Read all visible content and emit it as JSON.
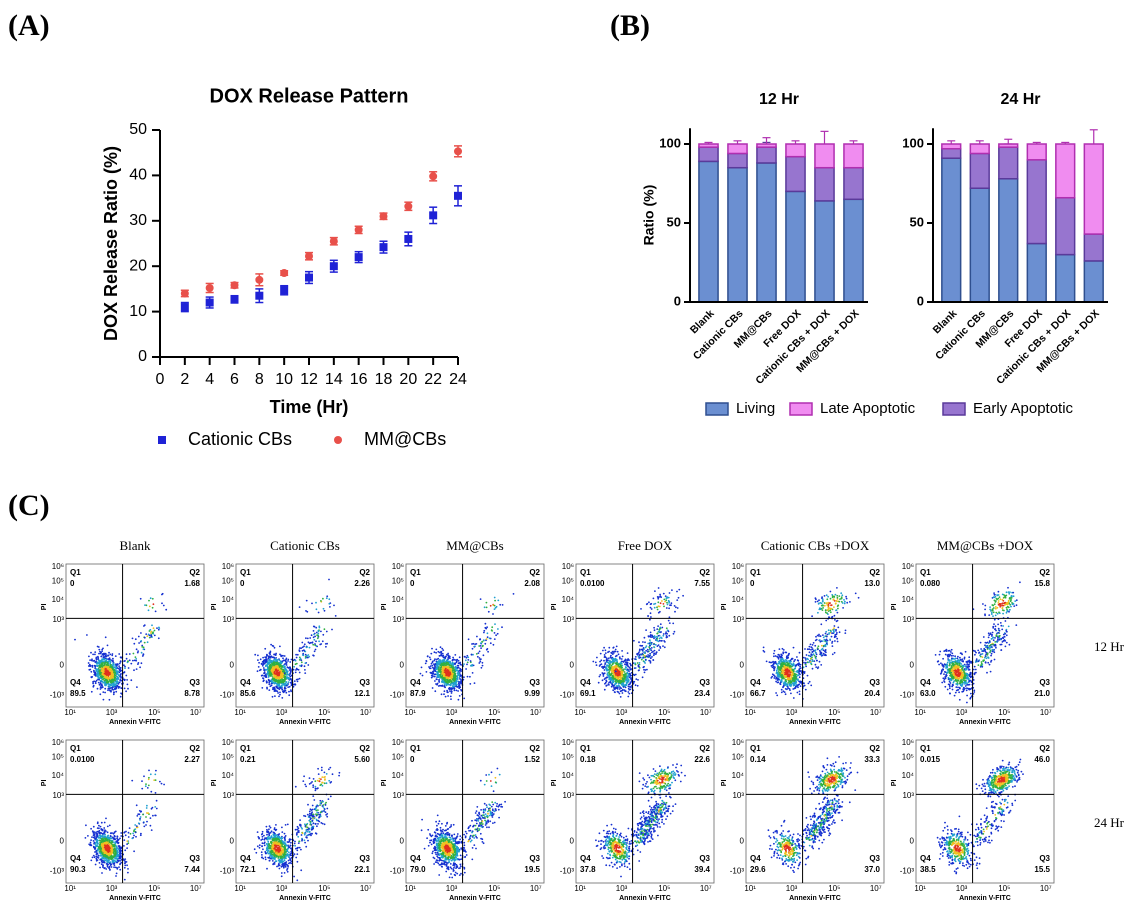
{
  "panel_labels": [
    "(A)",
    "(B)",
    "(C)"
  ],
  "chart_data": [
    {
      "type": "scatter",
      "title": "DOX Release Pattern",
      "xlabel": "Time (Hr)",
      "ylabel": "DOX Release Ratio (%)",
      "x": [
        2,
        4,
        6,
        8,
        10,
        12,
        14,
        16,
        18,
        20,
        22,
        24
      ],
      "series": [
        {
          "name": "Cationic CBs",
          "color": "#1f22d6",
          "marker": "square",
          "values": [
            11,
            12,
            12.7,
            13.5,
            14.7,
            17.5,
            20,
            22,
            24.2,
            26,
            31.2,
            35.5
          ],
          "errors": [
            1,
            1.2,
            0.8,
            1.5,
            1,
            1.3,
            1.3,
            1.2,
            1.3,
            1.5,
            1.8,
            2.2
          ]
        },
        {
          "name": "MM@CBs",
          "color": "#e8504a",
          "marker": "circle",
          "values": [
            14,
            15.2,
            15.8,
            17,
            18.5,
            22.2,
            25.5,
            28,
            31,
            33.2,
            39.8,
            45.3
          ],
          "errors": [
            0.7,
            1,
            0.6,
            1.3,
            0.5,
            0.8,
            0.8,
            0.8,
            0.7,
            0.9,
            1,
            1.2
          ]
        }
      ],
      "xlim": [
        0,
        24
      ],
      "xticks": [
        0,
        2,
        4,
        6,
        8,
        10,
        12,
        14,
        16,
        18,
        20,
        22,
        24
      ],
      "ylim": [
        0,
        50
      ],
      "yticks": [
        0,
        10,
        20,
        30,
        40,
        50
      ]
    },
    {
      "type": "stacked_bar",
      "ylabel": "Ratio (%)",
      "panels": [
        {
          "title": "12 Hr"
        },
        {
          "title": "24 Hr"
        }
      ],
      "categories": [
        "Blank",
        "Cationic CBs",
        "MM@CBs",
        "Free DOX",
        "Cationic CBs + DOX",
        "MM@CBs + DOX"
      ],
      "series": [
        {
          "name": "Living",
          "color": "#6b8fd1",
          "stroke": "#2f4f8f",
          "values": [
            [
              89,
              85,
              88,
              70,
              64,
              65
            ],
            [
              91,
              72,
              78,
              37,
              30,
              26
            ]
          ],
          "errors": [
            [
              3,
              6,
              7,
              6,
              14,
              2
            ],
            [
              4,
              4,
              4,
              6,
              1,
              9
            ]
          ]
        },
        {
          "name": "Early Apoptotic",
          "color": "#9775cf",
          "stroke": "#5a3a9a",
          "values": [
            [
              9,
              9,
              10,
              22,
              21,
              20
            ],
            [
              6,
              22,
              20,
              53,
              36,
              17
            ]
          ],
          "errors": [
            [
              2,
              2,
              3,
              4,
              8,
              1
            ],
            [
              2,
              3,
              2,
              3,
              1,
              6
            ]
          ]
        },
        {
          "name": "Late Apoptotic",
          "color": "#f08cf0",
          "stroke": "#b02fb0",
          "values": [
            [
              2,
              6,
              2,
              8,
              15,
              15
            ],
            [
              3,
              6,
              2,
              10,
              34,
              57
            ]
          ],
          "errors": [
            [
              1,
              2,
              4,
              2,
              8,
              2
            ],
            [
              2,
              2,
              3,
              1,
              1,
              9
            ]
          ]
        }
      ],
      "ylim": [
        0,
        110
      ],
      "yticks": [
        0,
        50,
        100
      ]
    }
  ],
  "flow": {
    "columns": [
      "Blank",
      "Cationic CBs",
      "MM@CBs",
      "Free DOX",
      "Cationic CBs +DOX",
      "MM@CBs +DOX"
    ],
    "rows": [
      "12 Hr",
      "24 Hr"
    ],
    "xlabel": "Annexin V-FITC",
    "ylabel": "PI",
    "xticks": [
      "10¹",
      "10³",
      "10⁵",
      "10⁷"
    ],
    "yticks": [
      "10⁶",
      "10⁵",
      "10⁴",
      "10³",
      "0",
      "-10³"
    ],
    "quadrant_names": [
      "Q1",
      "Q2",
      "Q3",
      "Q4"
    ],
    "quadrants": [
      [
        [
          "0",
          "1.68",
          "8.78",
          "89.5"
        ],
        [
          "0",
          "2.26",
          "12.1",
          "85.6"
        ],
        [
          "0",
          "2.08",
          "9.99",
          "87.9"
        ],
        [
          "0.0100",
          "7.55",
          "23.4",
          "69.1"
        ],
        [
          "0",
          "13.0",
          "20.4",
          "66.7"
        ],
        [
          "0.080",
          "15.8",
          "21.0",
          "63.0"
        ]
      ],
      [
        [
          "0.0100",
          "2.27",
          "7.44",
          "90.3"
        ],
        [
          "0.21",
          "5.60",
          "22.1",
          "72.1"
        ],
        [
          "0",
          "1.52",
          "19.5",
          "79.0"
        ],
        [
          "0.18",
          "22.6",
          "39.4",
          "37.8"
        ],
        [
          "0.14",
          "33.3",
          "37.0",
          "29.6"
        ],
        [
          "0.015",
          "46.0",
          "15.5",
          "38.5"
        ]
      ]
    ]
  }
}
